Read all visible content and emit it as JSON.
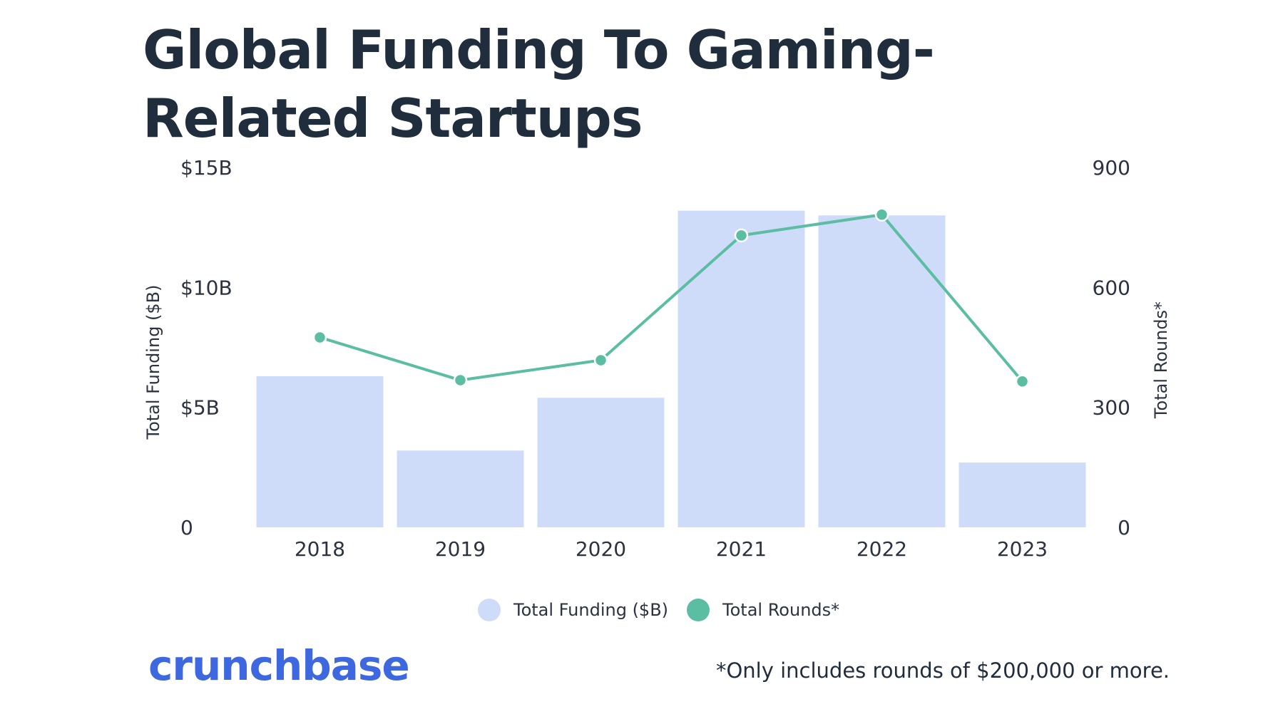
{
  "title": "Global Funding To Gaming-Related Startups",
  "legend": {
    "funding": "Total Funding ($B)",
    "rounds": "Total Rounds*"
  },
  "brand": "crunchbase",
  "footnote": "*Only includes rounds of $200,000 or more.",
  "colors": {
    "bar": "#cfdcf9",
    "line": "#5bbda2",
    "brand": "#3e68e0",
    "text": "#1f2d3d"
  },
  "chart_data": {
    "type": "bar",
    "title": "Global Funding To Gaming-Related Startups",
    "categories": [
      "2018",
      "2019",
      "2020",
      "2021",
      "2022",
      "2023"
    ],
    "series": [
      {
        "name": "Total Funding ($B)",
        "type": "bar",
        "axis": "left",
        "values": [
          6.3,
          3.2,
          5.4,
          13.2,
          13.0,
          2.7
        ]
      },
      {
        "name": "Total Rounds*",
        "type": "line",
        "axis": "right",
        "values": [
          475,
          368,
          418,
          730,
          782,
          365
        ]
      }
    ],
    "ylabel_left": "Total Funding ($B)",
    "ylabel_right": "Total Rounds*",
    "yticks_left": [
      "0",
      "$5B",
      "$10B",
      "$15B"
    ],
    "yticks_right": [
      "0",
      "300",
      "600",
      "900"
    ],
    "ylim_left": [
      0,
      15
    ],
    "ylim_right": [
      0,
      900
    ],
    "grid": false,
    "legend_position": "bottom-center"
  }
}
